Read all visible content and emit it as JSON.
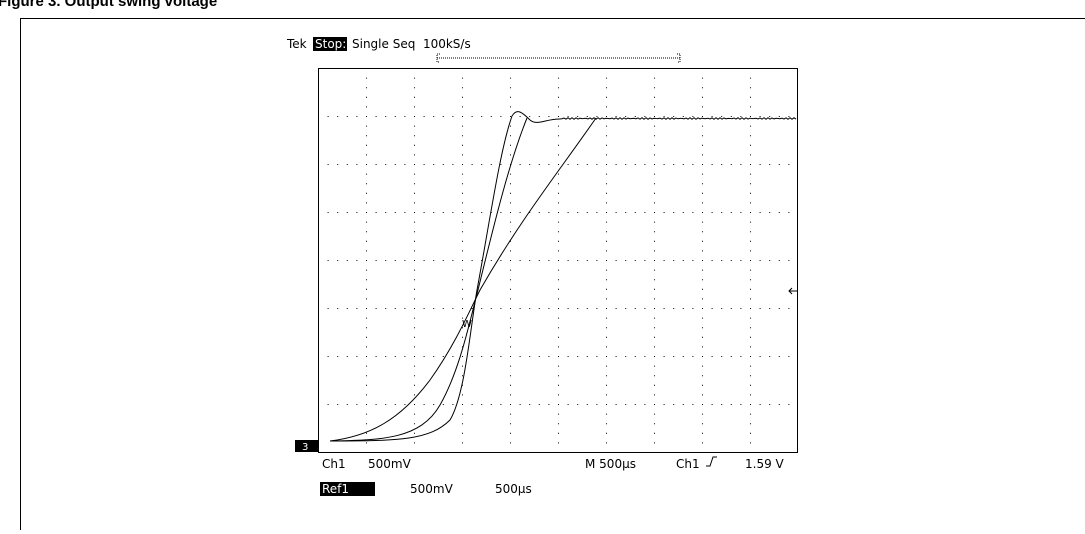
{
  "figure": {
    "title": "Figure 3. Output swing voltage"
  },
  "header": {
    "brand": "Tek",
    "state": "Stop:",
    "acquisition": "Single Seq  100kS/s"
  },
  "footer": {
    "channel": "Ch1",
    "volts_div": "500mV",
    "timebase": "M 500µs",
    "trigger_source": "Ch1",
    "trigger_level": "1.59 V"
  },
  "reference": {
    "name": "Ref1",
    "volts_div": "500mV",
    "time_div": "500µs"
  },
  "markers": {
    "trigger": "W",
    "ground": "3"
  }
}
